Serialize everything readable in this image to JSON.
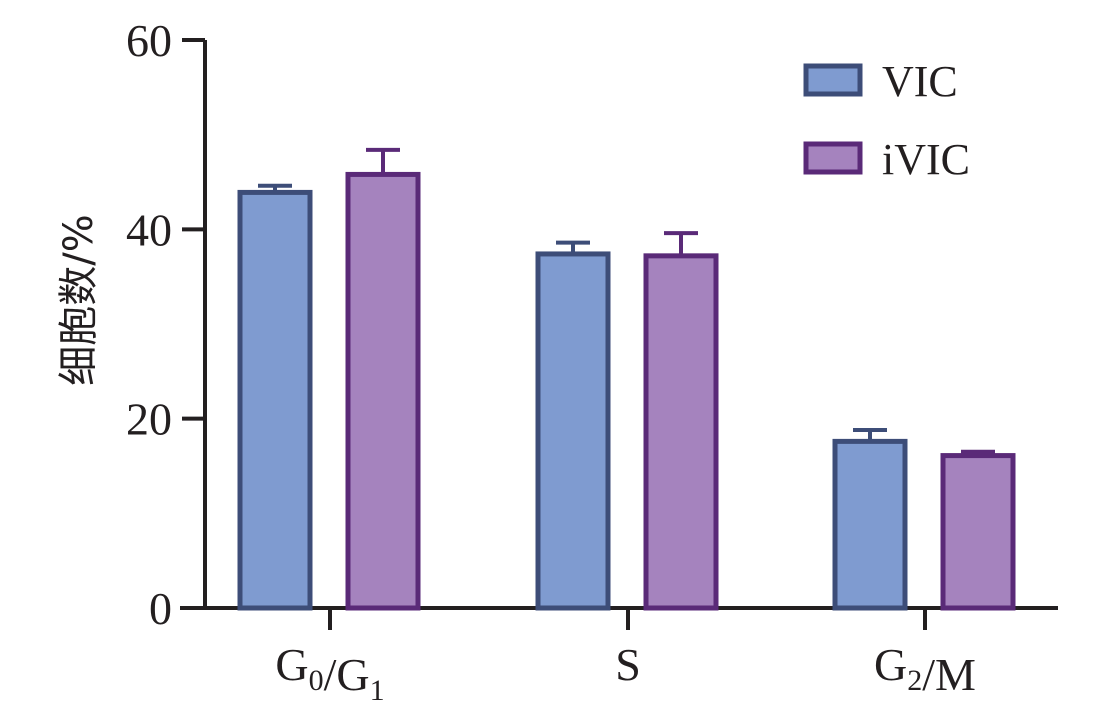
{
  "chart_data": {
    "type": "bar",
    "title": "",
    "xlabel": "",
    "ylabel": "细胞数/%",
    "ylim": [
      0,
      60
    ],
    "yticks": [
      0,
      20,
      40,
      60
    ],
    "categories": [
      "G0/G1",
      "S",
      "G2/M"
    ],
    "series": [
      {
        "name": "VIC",
        "values": [
          43.9,
          37.4,
          17.6
        ],
        "errors": [
          0.7,
          1.2,
          1.2
        ],
        "fill": "#7f9bd0",
        "stroke": "#3d4d78"
      },
      {
        "name": "iVIC",
        "values": [
          45.8,
          37.2,
          16.1
        ],
        "errors": [
          2.6,
          2.4,
          0.4
        ],
        "fill": "#a583be",
        "stroke": "#5a2a78"
      }
    ],
    "legend": "top-right",
    "grid": false
  }
}
